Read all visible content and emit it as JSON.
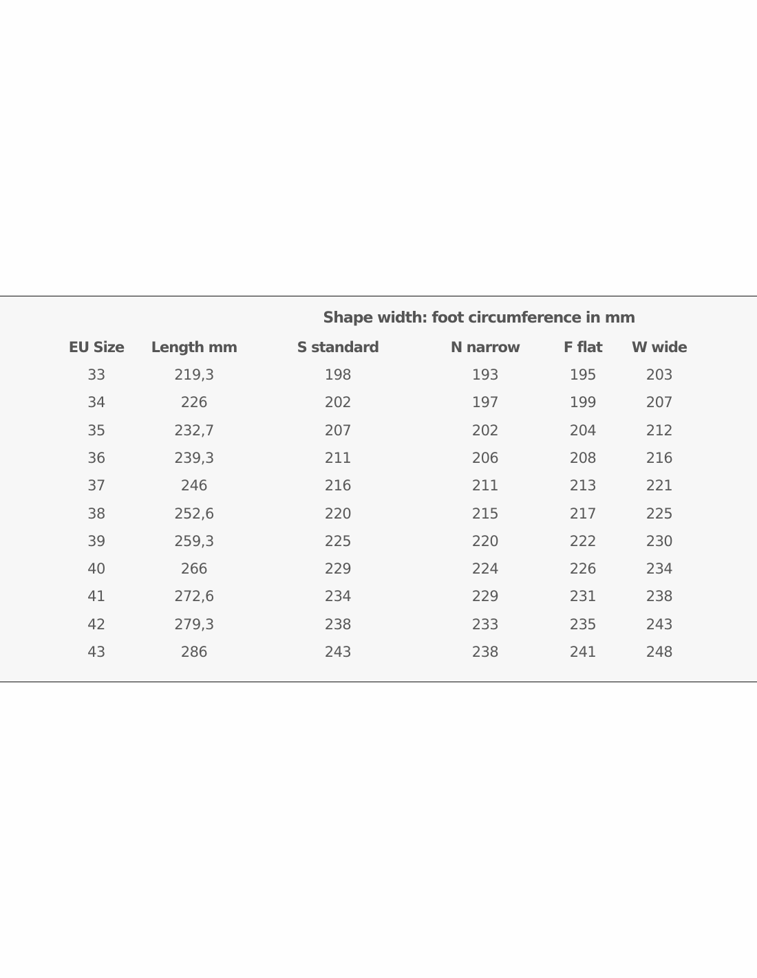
{
  "table": {
    "group_header": "Shape width: foot circumference in mm",
    "columns": [
      "EU Size",
      "Length mm",
      "S standard",
      "N narrow",
      "F flat",
      "W wide"
    ],
    "rows": [
      [
        "33",
        "219,3",
        "198",
        "193",
        "195",
        "203"
      ],
      [
        "34",
        "226",
        "202",
        "197",
        "199",
        "207"
      ],
      [
        "35",
        "232,7",
        "207",
        "202",
        "204",
        "212"
      ],
      [
        "36",
        "239,3",
        "211",
        "206",
        "208",
        "216"
      ],
      [
        "37",
        "246",
        "216",
        "211",
        "213",
        "221"
      ],
      [
        "38",
        "252,6",
        "220",
        "215",
        "217",
        "225"
      ],
      [
        "39",
        "259,3",
        "225",
        "220",
        "222",
        "230"
      ],
      [
        "40",
        "266",
        "229",
        "224",
        "226",
        "234"
      ],
      [
        "41",
        "272,6",
        "234",
        "229",
        "231",
        "238"
      ],
      [
        "42",
        "279,3",
        "238",
        "233",
        "235",
        "243"
      ],
      [
        "43",
        "286",
        "243",
        "238",
        "241",
        "248"
      ]
    ]
  }
}
